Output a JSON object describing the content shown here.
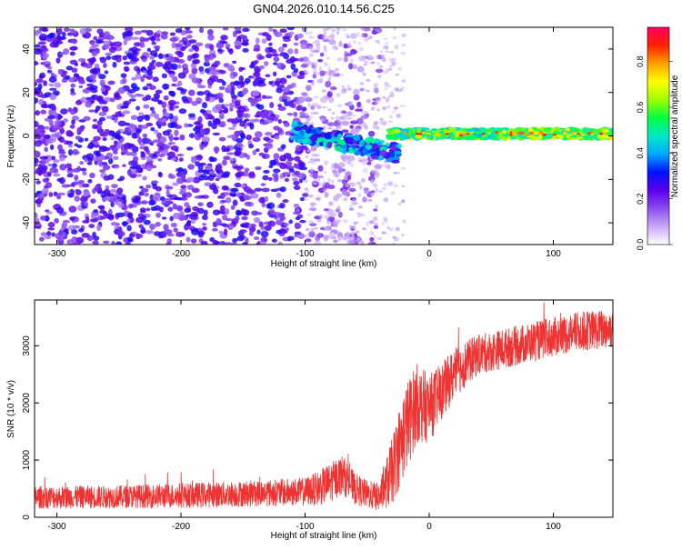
{
  "page_title": "GN04.2026.010.14.56.C25",
  "chart_data": [
    {
      "type": "heatmap",
      "title": "GN04.2026.010.14.56.C25",
      "xlabel": "Height of straight line (km)",
      "ylabel": "Frequency (Hz)",
      "xlim": [
        -318,
        148
      ],
      "ylim": [
        -50,
        50
      ],
      "xticks": [
        -300,
        -200,
        -100,
        0,
        100
      ],
      "yticks": [
        -40,
        -20,
        0,
        20,
        40
      ],
      "colorbar": {
        "label": "Normalized spectral amplitude",
        "range": [
          0.0,
          0.95
        ],
        "ticks": [
          0.0,
          0.2,
          0.4,
          0.6,
          0.8
        ],
        "colors": [
          "#ffffff",
          "#c8a8f8",
          "#8a4cf0",
          "#5a00e8",
          "#0010ff",
          "#00a8ff",
          "#00e8c8",
          "#00ff40",
          "#a0ff00",
          "#ffff00",
          "#ffa000",
          "#ff2000",
          "#ff0060"
        ]
      },
      "description_points": [
        {
          "x": -318,
          "y_range": [
            -50,
            50
          ],
          "amplitude": 0.25,
          "note": "broadband noise"
        },
        {
          "x": -100,
          "y_range": [
            -50,
            50
          ],
          "amplitude": 0.15
        },
        {
          "x": -60,
          "y_range": [
            -50,
            50
          ],
          "amplitude": 0.1
        },
        {
          "x": -45,
          "y": -6,
          "amplitude": 0.4
        },
        {
          "x": -30,
          "y": -2,
          "amplitude": 0.6
        },
        {
          "x": 0,
          "y": 1,
          "amplitude": 0.7
        },
        {
          "x": 100,
          "y": 1,
          "amplitude": 0.75
        },
        {
          "x": 148,
          "y": 1,
          "amplitude": 0.8
        }
      ]
    },
    {
      "type": "line",
      "xlabel": "Height of straight line (km)",
      "ylabel": "SNR (10 * v/v)",
      "xlim": [
        -318,
        148
      ],
      "ylim": [
        0,
        3800
      ],
      "xticks": [
        -300,
        -200,
        -100,
        0,
        100
      ],
      "yticks": [
        0,
        1000,
        2000,
        3000
      ],
      "color": "#ee3333",
      "series": [
        {
          "name": "SNR",
          "x": [
            -318,
            -300,
            -250,
            -200,
            -150,
            -120,
            -100,
            -90,
            -80,
            -70,
            -60,
            -50,
            -40,
            -30,
            -20,
            -10,
            0,
            10,
            20,
            30,
            40,
            60,
            80,
            100,
            120,
            148
          ],
          "y": [
            350,
            350,
            360,
            380,
            410,
            430,
            450,
            500,
            600,
            750,
            500,
            400,
            350,
            800,
            1500,
            2000,
            1900,
            2200,
            2500,
            2700,
            2850,
            2950,
            3050,
            3150,
            3250,
            3300
          ],
          "noise": [
            200,
            200,
            200,
            220,
            230,
            240,
            250,
            300,
            350,
            350,
            280,
            250,
            250,
            600,
            800,
            700,
            600,
            500,
            450,
            400,
            350,
            350,
            350,
            350,
            350,
            350
          ]
        }
      ]
    }
  ]
}
